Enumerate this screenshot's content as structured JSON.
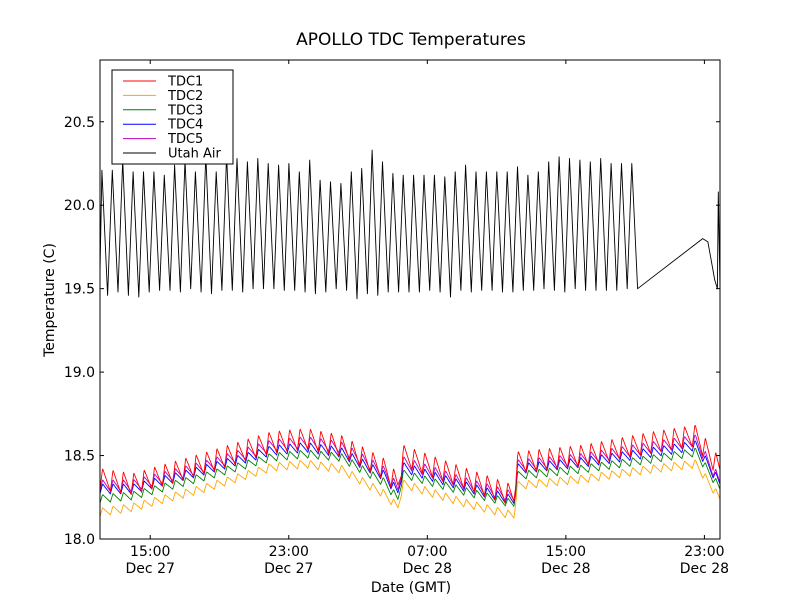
{
  "chart_data": {
    "type": "line",
    "title": "APOLLO TDC Temperatures",
    "xlabel": "Date (GMT)",
    "ylabel": "Temperature (C)",
    "xlim_hours_from_dec27_0000": [
      12.1,
      47.9
    ],
    "ylim": [
      18.0,
      20.87
    ],
    "grid": false,
    "legend_placement": "top-left",
    "x_ticks": [
      {
        "hour": 15,
        "line1": "15:00",
        "line2": "Dec 27"
      },
      {
        "hour": 23,
        "line1": "23:00",
        "line2": "Dec 27"
      },
      {
        "hour": 31,
        "line1": "07:00",
        "line2": "Dec 28"
      },
      {
        "hour": 39,
        "line1": "15:00",
        "line2": "Dec 28"
      },
      {
        "hour": 47,
        "line1": "23:00",
        "line2": "Dec 28"
      }
    ],
    "y_ticks": [
      {
        "value": 18.0,
        "label": "18.0"
      },
      {
        "value": 18.5,
        "label": "18.5"
      },
      {
        "value": 19.0,
        "label": "19.0"
      },
      {
        "value": 19.5,
        "label": "19.5"
      },
      {
        "value": 20.0,
        "label": "20.0"
      },
      {
        "value": 20.5,
        "label": "20.5"
      }
    ],
    "series": [
      {
        "name": "TDC1",
        "color": "#ff0000",
        "cycle_period_hours": 0.6,
        "cycle_amplitude": 0.13,
        "baseline": {
          "hours": [
            12.1,
            14,
            18,
            22,
            24,
            26,
            28.5,
            29.3,
            29.6,
            33,
            36,
            36.2,
            40,
            44,
            46.5,
            47.9
          ],
          "values": [
            18.36,
            18.33,
            18.45,
            18.58,
            18.6,
            18.56,
            18.42,
            18.33,
            18.5,
            18.37,
            18.26,
            18.46,
            18.5,
            18.58,
            18.62,
            18.42
          ]
        }
      },
      {
        "name": "TDC2",
        "color": "#ffa500",
        "cycle_period_hours": 0.6,
        "cycle_amplitude": 0.05,
        "baseline": {
          "hours": [
            12.1,
            14,
            18,
            22,
            24,
            26,
            28.5,
            29.3,
            29.6,
            33,
            36,
            36.2,
            40,
            44,
            46.5,
            47.9
          ],
          "values": [
            18.16,
            18.19,
            18.3,
            18.43,
            18.45,
            18.42,
            18.27,
            18.19,
            18.33,
            18.22,
            18.14,
            18.32,
            18.36,
            18.42,
            18.45,
            18.24
          ]
        }
      },
      {
        "name": "TDC3",
        "color": "#008000",
        "cycle_period_hours": 0.6,
        "cycle_amplitude": 0.05,
        "baseline": {
          "hours": [
            12.1,
            14,
            18,
            22,
            24,
            26,
            28.5,
            29.3,
            29.6,
            33,
            36,
            36.2,
            40,
            44,
            46.5,
            47.9
          ],
          "values": [
            18.24,
            18.26,
            18.37,
            18.49,
            18.51,
            18.49,
            18.34,
            18.24,
            18.39,
            18.29,
            18.21,
            18.38,
            18.42,
            18.48,
            18.52,
            18.3
          ]
        }
      },
      {
        "name": "TDC4",
        "color": "#0000ff",
        "cycle_period_hours": 0.6,
        "cycle_amplitude": 0.06,
        "baseline": {
          "hours": [
            12.1,
            14,
            18,
            22,
            24,
            26,
            28.5,
            29.3,
            29.6,
            33,
            36,
            36.2,
            40,
            44,
            46.5,
            47.9
          ],
          "values": [
            18.3,
            18.3,
            18.41,
            18.53,
            18.55,
            18.52,
            18.38,
            18.28,
            18.43,
            18.32,
            18.23,
            18.42,
            18.46,
            18.52,
            18.56,
            18.33
          ]
        }
      },
      {
        "name": "TDC5",
        "color": "#bf00bf",
        "cycle_period_hours": 0.6,
        "cycle_amplitude": 0.07,
        "baseline": {
          "hours": [
            12.1,
            14,
            18,
            22,
            24,
            26,
            28.5,
            29.3,
            29.6,
            33,
            36,
            36.2,
            40,
            44,
            46.5,
            47.9
          ],
          "values": [
            18.32,
            18.32,
            18.43,
            18.56,
            18.58,
            18.55,
            18.4,
            18.3,
            18.46,
            18.34,
            18.25,
            18.44,
            18.48,
            18.55,
            18.59,
            18.34
          ]
        }
      },
      {
        "name": "Utah Air",
        "color": "#000000",
        "cycle_period_hours": 0.6,
        "cycle_min": 19.49,
        "cycle_max": 20.22,
        "peaks": [
          20.21,
          20.21,
          20.27,
          20.2,
          20.2,
          20.2,
          20.18,
          20.24,
          20.27,
          20.2,
          20.3,
          20.2,
          20.3,
          20.28,
          20.26,
          20.28,
          20.25,
          20.24,
          20.25,
          20.2,
          20.27,
          20.15,
          20.14,
          20.13,
          20.2,
          20.22,
          20.33,
          20.26,
          20.19,
          20.18,
          20.18,
          20.18,
          20.18,
          20.17,
          20.2,
          20.24,
          20.2,
          20.2,
          20.2,
          20.2,
          20.23,
          20.18,
          20.2,
          20.26,
          20.29,
          20.28,
          20.27,
          20.26,
          20.28,
          20.25,
          20.25,
          20.25
        ],
        "troughs": [
          19.46,
          19.48,
          19.46,
          19.45,
          19.48,
          19.49,
          19.49,
          19.48,
          19.5,
          19.48,
          19.47,
          19.49,
          19.49,
          19.48,
          19.5,
          19.5,
          19.5,
          19.49,
          19.49,
          19.48,
          19.47,
          19.48,
          19.5,
          19.49,
          19.44,
          19.47,
          19.46,
          19.48,
          19.48,
          19.48,
          19.48,
          19.49,
          19.48,
          19.45,
          19.49,
          19.48,
          19.49,
          19.49,
          19.48,
          19.48,
          19.49,
          19.49,
          19.5,
          19.49,
          19.48,
          19.5,
          19.49,
          19.49,
          19.49,
          19.49,
          19.5
        ],
        "end_segment": {
          "hours": [
            46.9,
            47.2,
            47.6,
            47.75,
            47.8,
            47.9
          ],
          "values": [
            19.8,
            19.78,
            19.55,
            19.5,
            20.08,
            19.5
          ]
        }
      }
    ]
  }
}
